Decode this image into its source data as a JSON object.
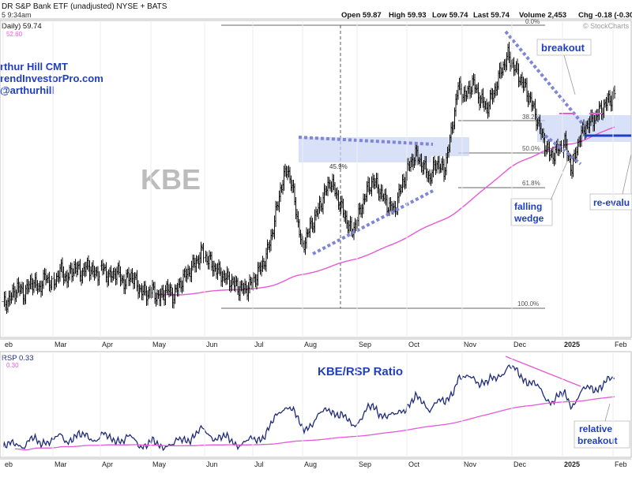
{
  "header": {
    "title": "DR S&P Bank ETF (unadjusted) NYSE + BATS",
    "date_line": "5 9:34am",
    "open": "Open 59.87",
    "high": "High 59.93",
    "low": "Low 59.74",
    "last": "Last 59.74",
    "volume": "Volume 2,453",
    "chg": "Chg -0.18 (-0.30",
    "watermark": "© StockCharts"
  },
  "legend": {
    "price": "Daily) 59.74",
    "ma": "52.60",
    "ratio": "RSP 0.33",
    "ratio_ma": "0.30"
  },
  "author": {
    "name": "rthur Hill CMT",
    "site": "rendInvestorPro.com",
    "handle": "@arthurhill"
  },
  "labels": {
    "ticker": "KBE",
    "breakout": "breakout",
    "falling_wedge_1": "falling",
    "falling_wedge_2": "wedge",
    "reevaluate": "re-evalu",
    "ratio_title": "KBE/RSP Ratio",
    "relative_1": "relative",
    "relative_2": "breakout",
    "fib_0": "0.0%",
    "fib_382": "38.2%",
    "fib_50": "50.0%",
    "fib_618": "61.8%",
    "fib_100": "100.0%",
    "retrace_459": "45.9%"
  },
  "colors": {
    "price": "#111111",
    "ma": "#e55ad6",
    "ratio": "#1f2a7a",
    "annot_blue": "#1f3fbf",
    "zone": "#c9d4f5",
    "dots": "#7f86d6"
  },
  "chart_data": {
    "type": "line",
    "x_axis_months": [
      "eb",
      "Mar",
      "Apr",
      "May",
      "Jun",
      "Jul",
      "Aug",
      "Sep",
      "Oct",
      "Nov",
      "Dec",
      "2025",
      "Feb"
    ],
    "price_panel": {
      "series_name": "",
      "approx_price_points": [
        [
          0,
          40.4
        ],
        [
          6,
          41.0
        ],
        [
          12,
          42.0
        ],
        [
          18,
          41.4
        ],
        [
          24,
          42.6
        ],
        [
          30,
          41.9
        ],
        [
          36,
          43.0
        ],
        [
          42,
          42.2
        ],
        [
          48,
          43.6
        ],
        [
          54,
          42.8
        ],
        [
          60,
          43.9
        ],
        [
          66,
          43.3
        ],
        [
          72,
          44.0
        ],
        [
          78,
          43.1
        ],
        [
          84,
          43.8
        ],
        [
          90,
          42.9
        ],
        [
          96,
          43.5
        ],
        [
          102,
          42.4
        ],
        [
          108,
          43.2
        ],
        [
          114,
          42.0
        ],
        [
          120,
          41.4
        ],
        [
          126,
          41.7
        ],
        [
          132,
          41.0
        ],
        [
          138,
          41.9
        ],
        [
          144,
          41.2
        ],
        [
          150,
          42.5
        ],
        [
          156,
          43.4
        ],
        [
          162,
          44.2
        ],
        [
          168,
          45.2
        ],
        [
          174,
          44.4
        ],
        [
          180,
          43.6
        ],
        [
          186,
          43.0
        ],
        [
          192,
          42.6
        ],
        [
          198,
          42.0
        ],
        [
          204,
          41.8
        ],
        [
          210,
          42.4
        ],
        [
          216,
          43.5
        ],
        [
          222,
          44.8
        ],
        [
          228,
          47.5
        ],
        [
          234,
          51.0
        ],
        [
          240,
          53.0
        ],
        [
          246,
          50.0
        ],
        [
          252,
          45.6
        ],
        [
          258,
          47.2
        ],
        [
          264,
          48.6
        ],
        [
          270,
          50.2
        ],
        [
          276,
          51.8
        ],
        [
          282,
          50.3
        ],
        [
          288,
          48.6
        ],
        [
          294,
          47.0
        ],
        [
          300,
          48.5
        ],
        [
          306,
          50.6
        ],
        [
          312,
          51.8
        ],
        [
          318,
          50.8
        ],
        [
          324,
          49.6
        ],
        [
          330,
          49.0
        ],
        [
          336,
          51.2
        ],
        [
          342,
          53.0
        ],
        [
          348,
          54.2
        ],
        [
          354,
          53.2
        ],
        [
          360,
          52.0
        ],
        [
          366,
          53.5
        ],
        [
          372,
          52.6
        ],
        [
          378,
          56.0
        ],
        [
          384,
          60.4
        ],
        [
          390,
          59.4
        ],
        [
          396,
          60.8
        ],
        [
          402,
          59.4
        ],
        [
          408,
          58.4
        ],
        [
          414,
          59.8
        ],
        [
          420,
          61.8
        ],
        [
          426,
          63.2
        ],
        [
          432,
          62.0
        ],
        [
          438,
          60.8
        ],
        [
          444,
          59.4
        ],
        [
          450,
          57.6
        ],
        [
          456,
          55.4
        ],
        [
          462,
          54.0
        ],
        [
          468,
          54.6
        ],
        [
          474,
          55.2
        ],
        [
          480,
          52.8
        ],
        [
          486,
          55.6
        ],
        [
          492,
          56.8
        ],
        [
          498,
          57.4
        ],
        [
          504,
          58.2
        ],
        [
          510,
          59.0
        ],
        [
          516,
          59.74
        ]
      ],
      "moving_average_label": "52.60",
      "fib_levels": [
        "0.0%",
        "38.2%",
        "50.0%",
        "61.8%",
        "100.0%"
      ],
      "annotations": [
        "KBE",
        "breakout",
        "falling wedge",
        "re-evalu",
        "45.9%"
      ]
    },
    "ratio_panel": {
      "title": "KBE/RSP Ratio",
      "last_value": 0.33,
      "ma_value": 0.3,
      "annotations": [
        "relative breakout"
      ]
    }
  }
}
